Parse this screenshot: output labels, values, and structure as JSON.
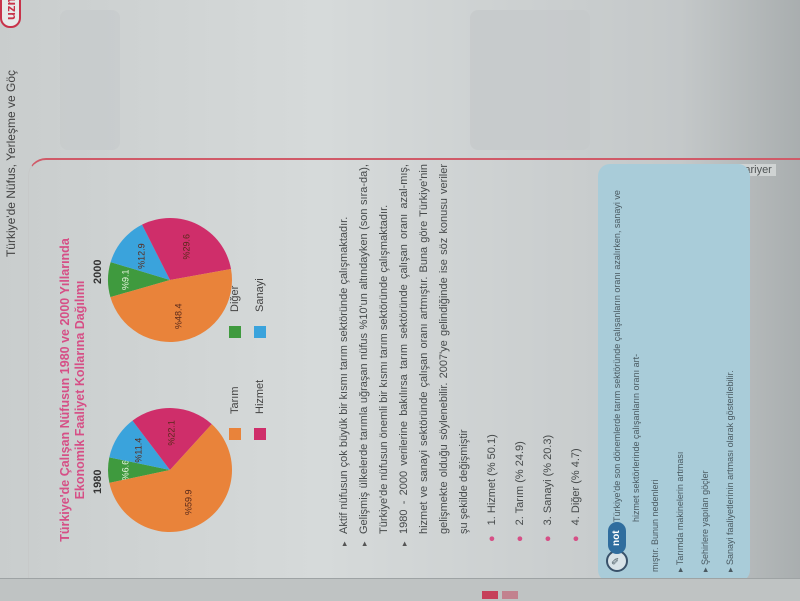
{
  "header": {
    "chapter": "Türkiye'de Nüfus, Yerleşme ve Göç",
    "brand_bold": "uzman",
    "brand_light": "kariyer"
  },
  "figure": {
    "title_line1": "Türkiye'de Çalışan Nüfusun 1980 ve 2000 Yıllarında",
    "title_line2": "Ekonomik Faaliyet Kollarına Dağılımı",
    "legend": [
      {
        "label": "Tarım",
        "color": "#e9833a"
      },
      {
        "label": "Hizmet",
        "color": "#cf2e6a"
      },
      {
        "label": "Diğer",
        "color": "#3f9a3e"
      },
      {
        "label": "Sanayi",
        "color": "#3aa3dc"
      }
    ]
  },
  "chart_data": [
    {
      "type": "pie",
      "title": "1980",
      "categories": [
        "Diğer",
        "Sanayi",
        "Hizmet",
        "Tarım"
      ],
      "values": [
        6.6,
        11.4,
        22.1,
        59.9
      ],
      "labels": [
        "%6.6",
        "%11.4",
        "%22.1",
        "%59.9"
      ],
      "colors": [
        "#3f9a3e",
        "#3aa3dc",
        "#cf2e6a",
        "#e9833a"
      ]
    },
    {
      "type": "pie",
      "title": "2000",
      "categories": [
        "Diğer",
        "Sanayi",
        "Hizmet",
        "Tarım"
      ],
      "values": [
        9.1,
        12.9,
        29.6,
        48.4
      ],
      "labels": [
        "%9.1",
        "%12.9",
        "%29.6",
        "%48.4"
      ],
      "colors": [
        "#3f9a3e",
        "#3aa3dc",
        "#cf2e6a",
        "#e9833a"
      ]
    }
  ],
  "body": {
    "bullets": [
      "Aktif nüfusun çok büyük bir kısmı tarım sektöründe çalışmaktadır.",
      "Gelişmiş ülkelerde tarımla uğraşan nüfus %10'un altındayken (son sıra-da), Türkiye'de nüfusun önemli bir kısmı tarım sektöründe çalışmaktadır.",
      "1980 - 2000 verilerine bakılırsa tarım sektöründe çalışan oranı azal-mış, hizmet ve sanayi sektöründe çalışan oranı artmıştır. Buna göre Türkiye'nin gelişmekte olduğu söylenebilir. 2007'ye gelindiğinde ise söz konusu veriler şu şekilde değişmiştir"
    ],
    "ranking": [
      "1. Hizmet (% 50.1)",
      "2. Tarım (% 24.9)",
      "3. Sanayi (% 20.3)",
      "4. Diğer (% 4.7)"
    ]
  },
  "note": {
    "label": "not",
    "text": "Türkiye'de son dönemlerde tarım sektöründe çalışanların oranı azalırken, sanayi ve hizmet sektörlerinde çalışanların oranı art-",
    "continuation": "mıştır. Bunun nedenleri",
    "items": [
      "Tarımda makinelerin artması",
      "Şehirlere yapılan göçler",
      "Sanayi faaliyetlerinin artması olarak gösterilebilir."
    ]
  }
}
